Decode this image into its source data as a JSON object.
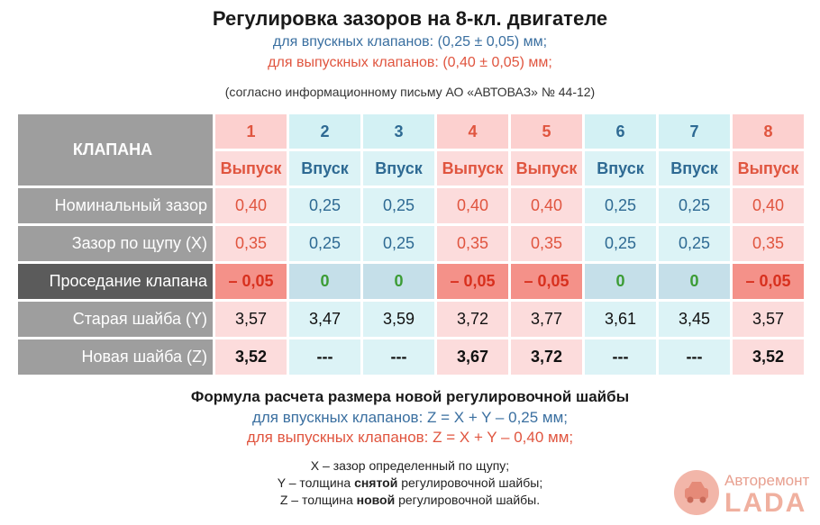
{
  "title": "Регулировка зазоров на 8-кл. двигателе",
  "subtitle_intake": "для впускных клапанов: (0,25 ± 0,05) мм;",
  "subtitle_exhaust": "для выпускных клапанов: (0,40 ± 0,05) мм;",
  "note": "(согласно информационному письму АО «АВТОВАЗ» № 44-12)",
  "table": {
    "header_label": "КЛАПАНА",
    "valve_numbers": [
      "1",
      "2",
      "3",
      "4",
      "5",
      "6",
      "7",
      "8"
    ],
    "valve_types": [
      "Выпуск",
      "Впуск",
      "Впуск",
      "Выпуск",
      "Выпуск",
      "Впуск",
      "Впуск",
      "Выпуск"
    ],
    "rows": [
      {
        "label": "Номинальный зазор",
        "values": [
          "0,40",
          "0,25",
          "0,25",
          "0,40",
          "0,40",
          "0,25",
          "0,25",
          "0,40"
        ]
      },
      {
        "label": "Зазор по щупу (X)",
        "values": [
          "0,35",
          "0,25",
          "0,25",
          "0,35",
          "0,35",
          "0,25",
          "0,25",
          "0,35"
        ]
      },
      {
        "label": "Проседание клапана",
        "values": [
          "– 0,05",
          "0",
          "0",
          "– 0,05",
          "– 0,05",
          "0",
          "0",
          "– 0,05"
        ]
      },
      {
        "label": "Старая шайба (Y)",
        "values": [
          "3,57",
          "3,47",
          "3,59",
          "3,72",
          "3,77",
          "3,61",
          "3,45",
          "3,57"
        ]
      },
      {
        "label": "Новая шайба (Z)",
        "values": [
          "3,52",
          "---",
          "---",
          "3,67",
          "3,72",
          "---",
          "---",
          "3,52"
        ]
      }
    ]
  },
  "formula": {
    "title": "Формула расчета размера новой регулировочной шайбы",
    "intake": "для впускных клапанов: Z = X + Y – 0,25 мм;",
    "exhaust": "для выпускных клапанов: Z = X + Y – 0,40 мм;"
  },
  "legend": {
    "x": "X – зазор определенный по щупу;",
    "y_pre": "Y – толщина ",
    "y_bold": "снятой",
    "y_post": " регулировочной шайбы;",
    "z_pre": "Z – толщина ",
    "z_bold": "новой",
    "z_post": " регулировочной шайбы."
  },
  "logo": {
    "top": "Авторемонт",
    "bottom": "LADA"
  },
  "colors": {
    "intake": "#2e6a93",
    "exhaust": "#e0553f",
    "zero": "#3c9c35"
  }
}
